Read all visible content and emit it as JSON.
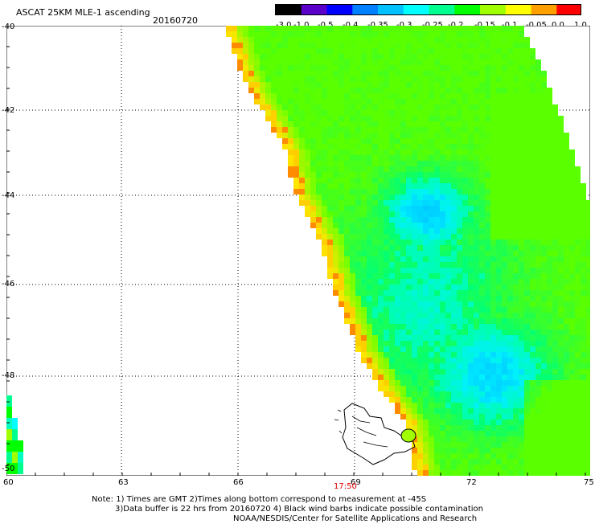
{
  "header": {
    "title": "ASCAT 25KM MLE-1 ascending",
    "date": "20160720"
  },
  "colorbar": {
    "labels": [
      "-3.0",
      "-1.0",
      "-0.5",
      "-0.4",
      "-0.35",
      "-0.3",
      "-0.25",
      "-0.2",
      "-0.15",
      "-0.1",
      "-0.05",
      "0.0",
      "1.0"
    ],
    "colors": [
      "#000000",
      "#5a00c8",
      "#0000ff",
      "#0080ff",
      "#00c0ff",
      "#00ffff",
      "#00ff90",
      "#00ff00",
      "#a0ff00",
      "#ffff00",
      "#ffa000",
      "#ff0000"
    ]
  },
  "axes": {
    "y_labels": [
      "-40",
      "-42",
      "-44",
      "-46",
      "-48",
      "-50"
    ],
    "x_labels": [
      "60",
      "63",
      "66",
      "69",
      "72",
      "75"
    ]
  },
  "time_label": "17:50",
  "notes": [
    "Note: 1) Times are GMT 2)Times along bottom correspond to measurement at -45S",
    "3)Data buffer is 22 hrs from 20160720 4) Black wind barbs indicate possible contamination",
    "NOAA/NESDIS/Center for Satellite Applications and Research"
  ]
}
